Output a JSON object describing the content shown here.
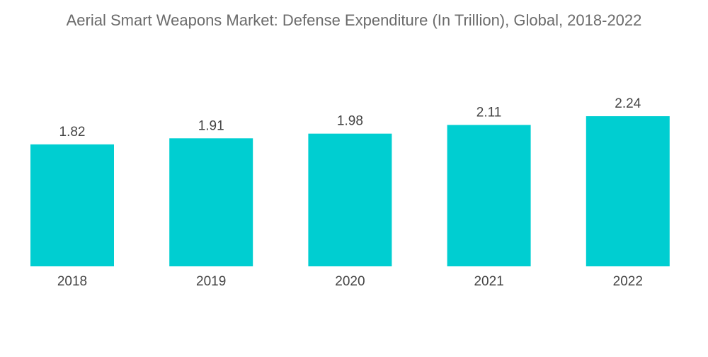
{
  "chart_data": {
    "type": "bar",
    "title": "Aerial Smart Weapons Market: Defense Expenditure (In Trillion), Global, 2018-2022",
    "categories": [
      "2018",
      "2019",
      "2020",
      "2021",
      "2022"
    ],
    "values": [
      1.82,
      1.91,
      1.98,
      2.11,
      2.24
    ],
    "value_labels": [
      "1.82",
      "1.91",
      "1.98",
      "2.11",
      "2.24"
    ],
    "xlabel": "",
    "ylabel": "",
    "ylim": [
      0,
      2.6
    ],
    "grid": false,
    "bar_color": "#00CED1"
  }
}
